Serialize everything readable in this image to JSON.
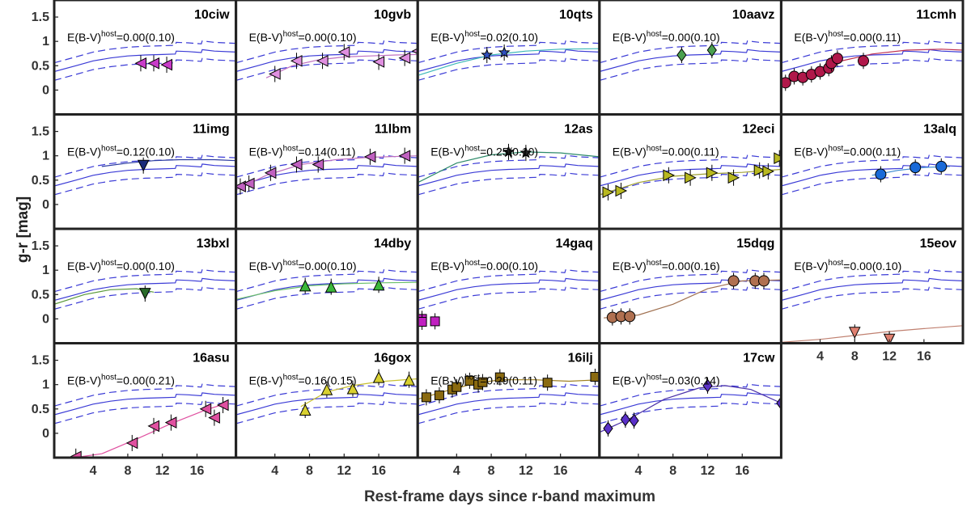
{
  "chart_data": {
    "type": "scatter",
    "ylabel": "g-r [mag]",
    "xlabel": "Rest-frame days since r-band maximum",
    "yticks": [
      "0",
      "0.5",
      "1",
      "1.5"
    ],
    "xticks": [
      "4",
      "8",
      "12",
      "16"
    ],
    "ylim": [
      -0.5,
      1.85
    ],
    "xlim": [
      -0.5,
      20.5
    ],
    "template": {
      "mean": [
        [
          -0.5,
          0.38
        ],
        [
          2,
          0.5
        ],
        [
          4,
          0.6
        ],
        [
          6,
          0.66
        ],
        [
          8,
          0.7
        ],
        [
          10,
          0.72
        ],
        [
          12,
          0.73
        ],
        [
          13.5,
          0.74
        ],
        [
          13.6,
          0.8
        ],
        [
          15,
          0.79
        ],
        [
          16.5,
          0.77
        ],
        [
          16.6,
          0.83
        ],
        [
          18,
          0.8
        ],
        [
          20.5,
          0.78
        ]
      ],
      "upper": [
        [
          -0.5,
          0.56
        ],
        [
          2,
          0.68
        ],
        [
          4,
          0.78
        ],
        [
          6,
          0.84
        ],
        [
          8,
          0.88
        ],
        [
          10,
          0.9
        ],
        [
          12,
          0.91
        ],
        [
          13.5,
          0.92
        ],
        [
          13.6,
          0.98
        ],
        [
          15,
          0.97
        ],
        [
          16.5,
          0.95
        ],
        [
          16.6,
          1.01
        ],
        [
          18,
          0.98
        ],
        [
          20.5,
          0.96
        ]
      ],
      "lower": [
        [
          -0.5,
          0.2
        ],
        [
          2,
          0.32
        ],
        [
          4,
          0.42
        ],
        [
          6,
          0.48
        ],
        [
          8,
          0.52
        ],
        [
          10,
          0.54
        ],
        [
          12,
          0.55
        ],
        [
          13.5,
          0.56
        ],
        [
          13.6,
          0.62
        ],
        [
          15,
          0.61
        ],
        [
          16.5,
          0.59
        ],
        [
          16.6,
          0.65
        ],
        [
          18,
          0.62
        ],
        [
          20.5,
          0.6
        ]
      ]
    },
    "panels": [
      {
        "name": "10ciw",
        "ebv": "0.00(0.10)",
        "marker": "tri-left",
        "color": "#c83cc8",
        "points": [
          [
            9.5,
            0.55
          ],
          [
            11,
            0.55
          ],
          [
            12.5,
            0.52
          ]
        ],
        "fit": []
      },
      {
        "name": "10gvb",
        "ebv": "0.00(0.10)",
        "marker": "tri-left",
        "color": "#e08fe0",
        "points": [
          [
            4,
            0.33
          ],
          [
            6.5,
            0.6
          ],
          [
            9.5,
            0.6
          ],
          [
            12,
            0.78
          ],
          [
            16,
            0.58
          ],
          [
            19,
            0.66
          ],
          [
            20.5,
            0.8
          ]
        ],
        "fit": [
          [
            3,
            0.25
          ],
          [
            6,
            0.5
          ],
          [
            9,
            0.62
          ],
          [
            12,
            0.68
          ],
          [
            15,
            0.7
          ],
          [
            18,
            0.72
          ],
          [
            20.5,
            0.73
          ]
        ],
        "fitcolor": "#c070c0"
      },
      {
        "name": "10qts",
        "ebv": "0.02(0.10)",
        "marker": "star",
        "color": "#3050c0",
        "points": [
          [
            7.5,
            0.72
          ],
          [
            9.5,
            0.77
          ]
        ],
        "fit": [
          [
            -0.5,
            0.3
          ],
          [
            4,
            0.55
          ],
          [
            8,
            0.72
          ],
          [
            12,
            0.8
          ],
          [
            16,
            0.84
          ],
          [
            20.5,
            0.85
          ]
        ],
        "fitcolor": "#3cb8b8"
      },
      {
        "name": "10aavz",
        "ebv": "0.00(0.10)",
        "marker": "diamond",
        "color": "#4aa050",
        "points": [
          [
            9,
            0.72
          ],
          [
            12.5,
            0.82
          ]
        ],
        "fit": []
      },
      {
        "name": "11cmh",
        "ebv": "0.00(0.11)",
        "marker": "circle",
        "color": "#b0184a",
        "points": [
          [
            0,
            0.15
          ],
          [
            1,
            0.28
          ],
          [
            2,
            0.26
          ],
          [
            3,
            0.32
          ],
          [
            4,
            0.38
          ],
          [
            5,
            0.45
          ],
          [
            5.3,
            0.55
          ],
          [
            6,
            0.65
          ],
          [
            9,
            0.6
          ]
        ],
        "fit": [
          [
            -0.5,
            0.12
          ],
          [
            3,
            0.32
          ],
          [
            6,
            0.58
          ],
          [
            10,
            0.74
          ],
          [
            14,
            0.82
          ],
          [
            18,
            0.84
          ],
          [
            20.5,
            0.82
          ]
        ],
        "fitcolor": "#c03050"
      },
      {
        "name": "11img",
        "ebv": "0.12(0.10)",
        "marker": "tri-down",
        "color": "#1a2a7a",
        "points": [
          [
            9.8,
            0.8
          ]
        ],
        "fit": [
          [
            5,
            0.78
          ],
          [
            8,
            0.85
          ],
          [
            11,
            0.9
          ],
          [
            14,
            0.92
          ],
          [
            18,
            0.92
          ],
          [
            20.5,
            0.9
          ]
        ],
        "fitcolor": "#2a3aa0"
      },
      {
        "name": "11lbm",
        "ebv": "0.14(0.11)",
        "marker": "tri-left",
        "color": "#c060c0",
        "points": [
          [
            0,
            0.37
          ],
          [
            1,
            0.43
          ],
          [
            3.5,
            0.65
          ],
          [
            6.5,
            0.82
          ],
          [
            9,
            0.82
          ],
          [
            15,
            0.98
          ],
          [
            19,
            1.0
          ]
        ],
        "fit": [
          [
            -0.5,
            0.3
          ],
          [
            3,
            0.6
          ],
          [
            7,
            0.82
          ],
          [
            11,
            0.92
          ],
          [
            15,
            0.97
          ],
          [
            20.5,
            1.0
          ]
        ],
        "fitcolor": "#c070c0"
      },
      {
        "name": "12as",
        "ebv": "0.25(0.10)",
        "marker": "star",
        "color": "#222222",
        "points": [
          [
            10,
            1.08
          ],
          [
            12,
            1.06
          ]
        ],
        "fit": [
          [
            -0.5,
            0.45
          ],
          [
            4,
            0.85
          ],
          [
            8,
            1.02
          ],
          [
            12,
            1.08
          ],
          [
            16,
            1.06
          ],
          [
            20.5,
            0.98
          ]
        ],
        "fitcolor": "#2e8b6a"
      },
      {
        "name": "12eci",
        "ebv": "0.00(0.11)",
        "marker": "tri-right",
        "color": "#b8b820",
        "points": [
          [
            0.5,
            0.25
          ],
          [
            2,
            0.28
          ],
          [
            7.5,
            0.6
          ],
          [
            10,
            0.55
          ],
          [
            12.5,
            0.65
          ],
          [
            15,
            0.55
          ],
          [
            18,
            0.7
          ],
          [
            19,
            0.68
          ],
          [
            20.3,
            0.95
          ]
        ],
        "fit": [
          [
            -0.5,
            0.2
          ],
          [
            4,
            0.45
          ],
          [
            8,
            0.58
          ],
          [
            12,
            0.63
          ],
          [
            16,
            0.66
          ],
          [
            20.5,
            0.72
          ]
        ],
        "fitcolor": "#a0a030"
      },
      {
        "name": "13alq",
        "ebv": "0.00(0.11)",
        "marker": "circle",
        "color": "#1a6ad8",
        "points": [
          [
            11,
            0.62
          ],
          [
            15,
            0.76
          ],
          [
            18,
            0.78
          ]
        ],
        "fit": [
          [
            10,
            0.6
          ],
          [
            13,
            0.7
          ],
          [
            16,
            0.76
          ],
          [
            19,
            0.78
          ]
        ],
        "fitcolor": "#3a8ad0"
      },
      {
        "name": "13bxl",
        "ebv": "0.00(0.10)",
        "marker": "tri-down",
        "color": "#2a6a2a",
        "points": [
          [
            10,
            0.52
          ]
        ],
        "fit": [
          [
            -0.5,
            0.3
          ],
          [
            3,
            0.5
          ],
          [
            6,
            0.6
          ],
          [
            9,
            0.62
          ],
          [
            11,
            0.55
          ]
        ],
        "fitcolor": "#5a9a3a"
      },
      {
        "name": "14dby",
        "ebv": "0.00(0.10)",
        "marker": "tri-up",
        "color": "#3ab83a",
        "points": [
          [
            7.5,
            0.68
          ],
          [
            10.5,
            0.66
          ],
          [
            16,
            0.7
          ]
        ],
        "fit": [
          [
            -0.5,
            0.4
          ],
          [
            4,
            0.58
          ],
          [
            8,
            0.68
          ],
          [
            12,
            0.72
          ],
          [
            16,
            0.74
          ],
          [
            20.5,
            0.75
          ]
        ],
        "fitcolor": "#6ac06a"
      },
      {
        "name": "14gaq",
        "ebv": "0.00(0.10)",
        "marker": "square",
        "color": "#c020c0",
        "points": [
          [
            0,
            0.0
          ],
          [
            0,
            -0.06
          ],
          [
            1.5,
            -0.05
          ]
        ],
        "fit": []
      },
      {
        "name": "15dqg",
        "ebv": "0.00(0.16)",
        "marker": "circle",
        "color": "#b07050",
        "points": [
          [
            1,
            0.03
          ],
          [
            2,
            0.05
          ],
          [
            3,
            0.05
          ],
          [
            15,
            0.78
          ],
          [
            17.5,
            0.78
          ],
          [
            18.5,
            0.78
          ]
        ],
        "fit": [
          [
            0,
            0.02
          ],
          [
            4,
            0.08
          ],
          [
            8,
            0.3
          ],
          [
            12,
            0.62
          ],
          [
            16,
            0.78
          ],
          [
            20.5,
            0.8
          ]
        ],
        "fitcolor": "#a07050"
      },
      {
        "name": "15eov",
        "ebv": "0.00(0.10)",
        "marker": "tri-down",
        "color": "#e08070",
        "points": [
          [
            8,
            -0.28
          ],
          [
            12,
            -0.42
          ]
        ],
        "fit": [
          [
            -0.5,
            -0.48
          ],
          [
            4,
            -0.42
          ],
          [
            8,
            -0.34
          ],
          [
            12,
            -0.26
          ],
          [
            16,
            -0.2
          ],
          [
            20.5,
            -0.14
          ]
        ],
        "fitcolor": "#c08070"
      },
      {
        "name": "16asu",
        "ebv": "0.00(0.21)",
        "marker": "tri-left",
        "color": "#e050a0",
        "points": [
          [
            2,
            -0.48
          ],
          [
            8.5,
            -0.2
          ],
          [
            11,
            0.15
          ],
          [
            13,
            0.22
          ],
          [
            17,
            0.5
          ],
          [
            18,
            0.32
          ],
          [
            19,
            0.58
          ]
        ],
        "fit": [
          [
            1,
            -0.52
          ],
          [
            5,
            -0.42
          ],
          [
            9,
            -0.12
          ],
          [
            13,
            0.2
          ],
          [
            17,
            0.48
          ],
          [
            19.5,
            0.62
          ]
        ],
        "fitcolor": "#e050a0"
      },
      {
        "name": "16gox",
        "ebv": "0.16(0.15)",
        "marker": "tri-up",
        "color": "#d8d030",
        "points": [
          [
            7.5,
            0.48
          ],
          [
            10,
            0.9
          ],
          [
            13,
            0.92
          ],
          [
            16,
            1.15
          ],
          [
            19.5,
            1.1
          ]
        ],
        "fit": [
          [
            7,
            0.55
          ],
          [
            10,
            0.85
          ],
          [
            13,
            0.98
          ],
          [
            16,
            1.06
          ],
          [
            20.5,
            1.12
          ]
        ],
        "fitcolor": "#c8c030"
      },
      {
        "name": "16ilj",
        "ebv": "0.29(0.11)",
        "marker": "square",
        "color": "#8a6a10",
        "points": [
          [
            0.5,
            0.74
          ],
          [
            2,
            0.78
          ],
          [
            3.5,
            0.9
          ],
          [
            4,
            0.95
          ],
          [
            5.5,
            1.08
          ],
          [
            6.5,
            1.0
          ],
          [
            7,
            1.05
          ],
          [
            9,
            1.15
          ],
          [
            14.5,
            1.04
          ],
          [
            20,
            1.16
          ]
        ],
        "fit": [
          [
            -0.5,
            0.7
          ],
          [
            3,
            0.88
          ],
          [
            6,
            1.02
          ],
          [
            9,
            1.1
          ],
          [
            13,
            1.1
          ],
          [
            17,
            1.07
          ],
          [
            20.5,
            1.1
          ]
        ],
        "fitcolor": "#a08020"
      },
      {
        "name": "17cw",
        "ebv": "0.03(0.14)",
        "marker": "diamond",
        "color": "#5a30c8",
        "points": [
          [
            0.5,
            0.1
          ],
          [
            2.5,
            0.28
          ],
          [
            3.5,
            0.26
          ],
          [
            12,
            0.98
          ],
          [
            20.5,
            0.62
          ]
        ],
        "fit": [
          [
            -0.5,
            0.02
          ],
          [
            3,
            0.3
          ],
          [
            7,
            0.7
          ],
          [
            11,
            0.93
          ],
          [
            14,
            0.98
          ],
          [
            17,
            0.9
          ],
          [
            20.5,
            0.62
          ]
        ],
        "fitcolor": "#4a30a8"
      }
    ]
  }
}
